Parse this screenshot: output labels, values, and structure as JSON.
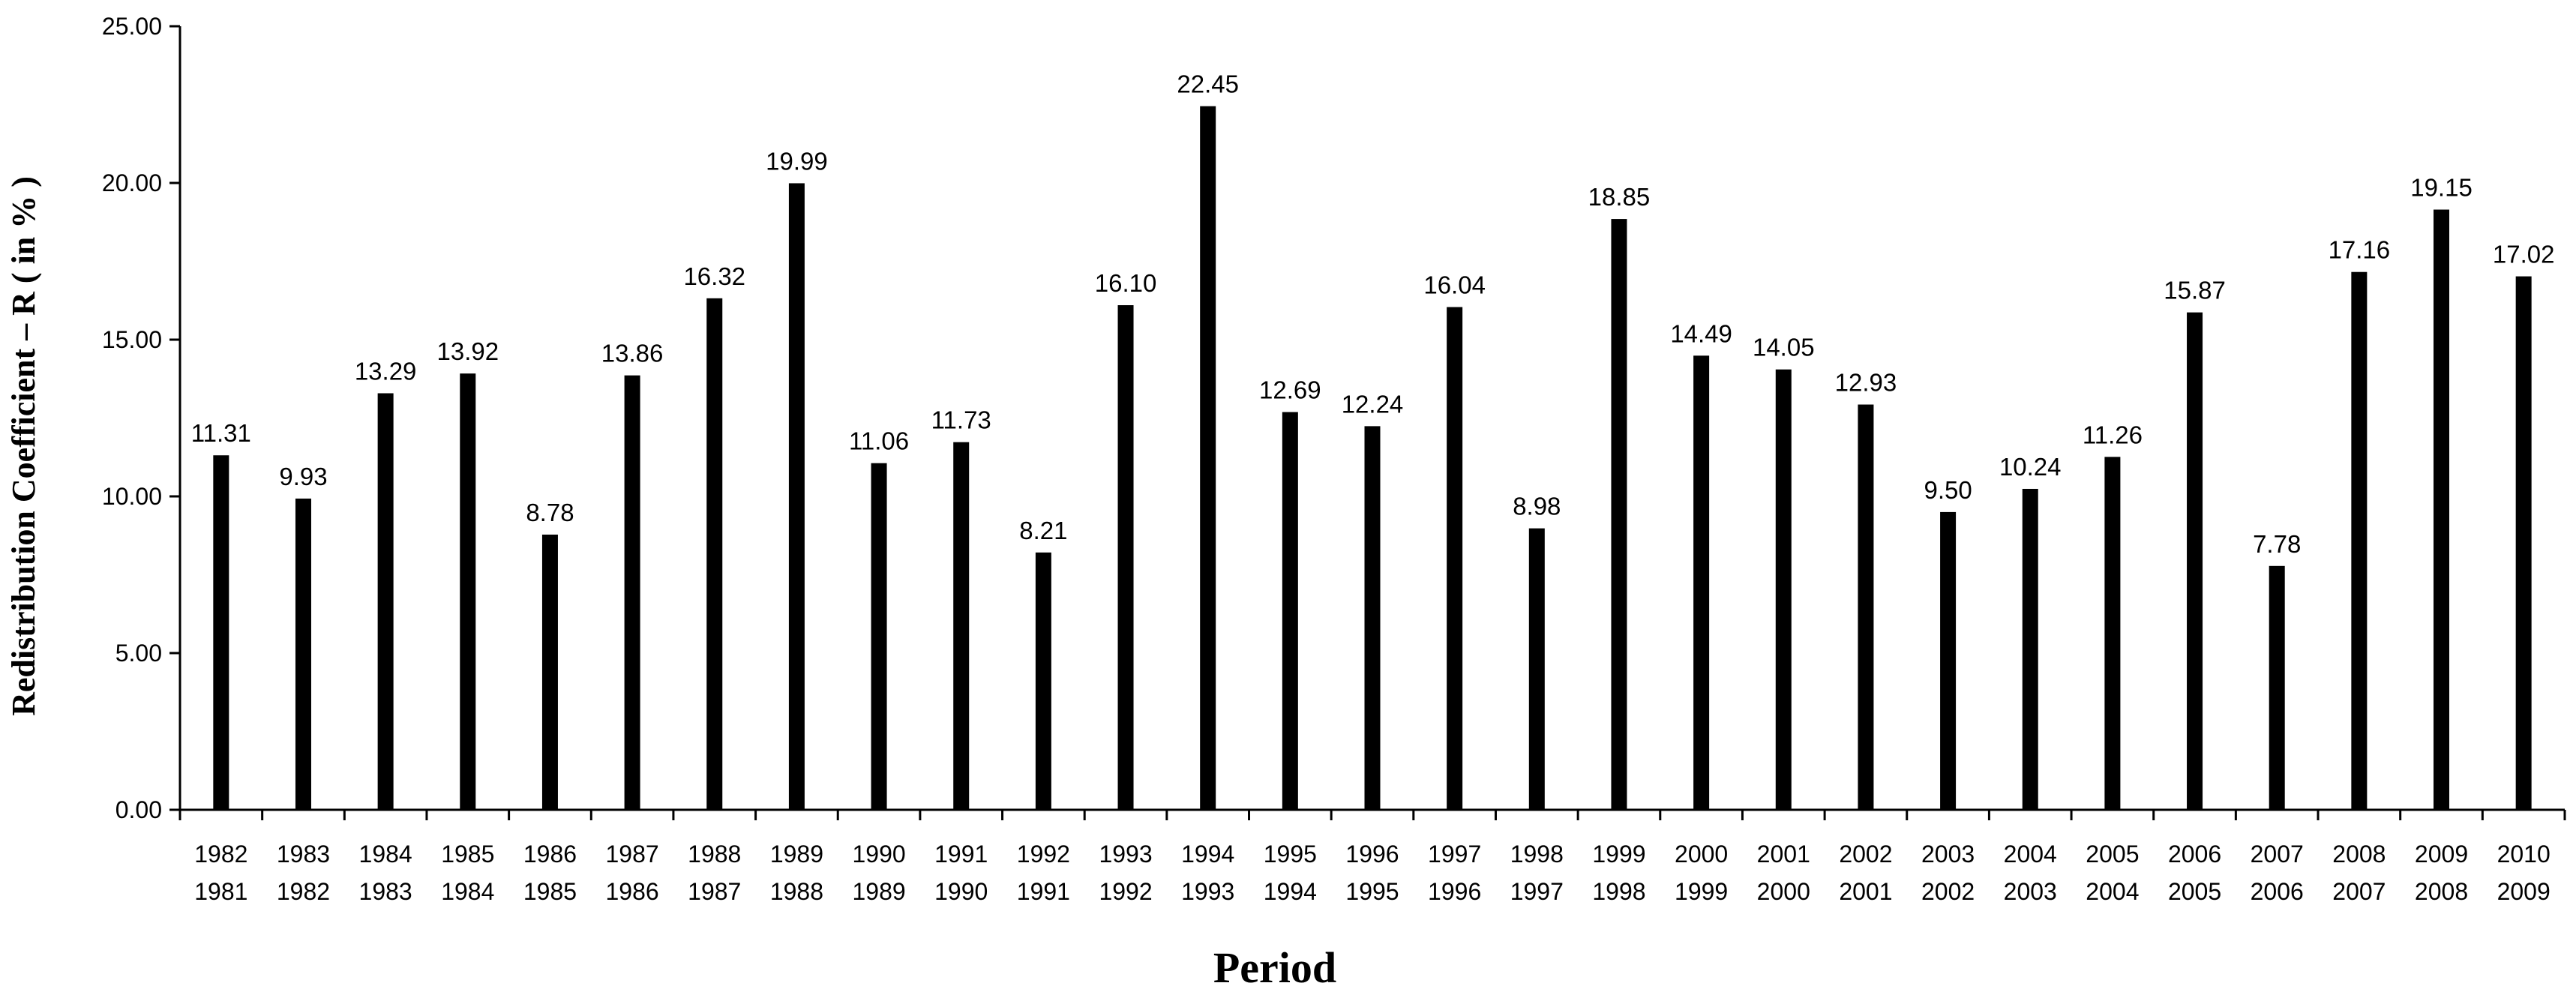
{
  "chart_data": {
    "type": "bar",
    "title": "",
    "xlabel": "Period",
    "ylabel": "Redistribution Coefficient – R ( in % )",
    "ylim": [
      0,
      25
    ],
    "yticks": [
      "0.00",
      "5.00",
      "10.00",
      "15.00",
      "20.00",
      "25.00"
    ],
    "grid": false,
    "legend": "none",
    "bar_color": "#000000",
    "categories": [
      [
        "1982",
        "1981"
      ],
      [
        "1983",
        "1982"
      ],
      [
        "1984",
        "1983"
      ],
      [
        "1985",
        "1984"
      ],
      [
        "1986",
        "1985"
      ],
      [
        "1987",
        "1986"
      ],
      [
        "1988",
        "1987"
      ],
      [
        "1989",
        "1988"
      ],
      [
        "1990",
        "1989"
      ],
      [
        "1991",
        "1990"
      ],
      [
        "1992",
        "1991"
      ],
      [
        "1993",
        "1992"
      ],
      [
        "1994",
        "1993"
      ],
      [
        "1995",
        "1994"
      ],
      [
        "1996",
        "1995"
      ],
      [
        "1997",
        "1996"
      ],
      [
        "1998",
        "1997"
      ],
      [
        "1999",
        "1998"
      ],
      [
        "2000",
        "1999"
      ],
      [
        "2001",
        "2000"
      ],
      [
        "2002",
        "2001"
      ],
      [
        "2003",
        "2002"
      ],
      [
        "2004",
        "2003"
      ],
      [
        "2005",
        "2004"
      ],
      [
        "2006",
        "2005"
      ],
      [
        "2007",
        "2006"
      ],
      [
        "2008",
        "2007"
      ],
      [
        "2009",
        "2008"
      ],
      [
        "2010",
        "2009"
      ]
    ],
    "values": [
      11.31,
      9.93,
      13.29,
      13.92,
      8.78,
      13.86,
      16.32,
      19.99,
      11.06,
      11.73,
      8.21,
      16.1,
      22.45,
      12.69,
      12.24,
      16.04,
      8.98,
      18.85,
      14.49,
      14.05,
      12.93,
      9.5,
      10.24,
      11.26,
      15.87,
      7.78,
      17.16,
      19.15,
      17.02
    ],
    "value_labels": [
      "11.31",
      "9.93",
      "13.29",
      "13.92",
      "8.78",
      "13.86",
      "16.32",
      "19.99",
      "11.06",
      "11.73",
      "8.21",
      "16.10",
      "22.45",
      "12.69",
      "12.24",
      "16.04",
      "8.98",
      "18.85",
      "14.49",
      "14.05",
      "12.93",
      "9.50",
      "10.24",
      "11.26",
      "15.87",
      "7.78",
      "17.16",
      "19.15",
      "17.02"
    ]
  }
}
